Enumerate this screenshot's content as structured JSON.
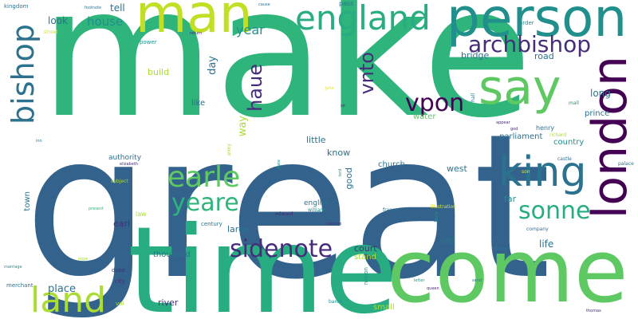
{
  "palette": {
    "dark_purple": "#440154",
    "purple": "#472c7a",
    "indigo": "#3b518b",
    "blue": "#33638d",
    "teal_blue": "#2c728e",
    "teal": "#21908d",
    "green_teal": "#27ad81",
    "green": "#2fb47c",
    "light_green": "#5ec962",
    "lime": "#aadc32",
    "yellow_green": "#c2df23",
    "yellow": "#dde318"
  },
  "words": [
    {
      "text": "great",
      "color": "blue",
      "orientation": "horizontal"
    },
    {
      "text": "make",
      "color": "green",
      "orientation": "horizontal"
    },
    {
      "text": "time",
      "color": "green_teal",
      "orientation": "horizontal"
    },
    {
      "text": "come",
      "color": "light_green",
      "orientation": "horizontal"
    },
    {
      "text": "person",
      "color": "teal",
      "orientation": "horizontal"
    },
    {
      "text": "man",
      "color": "yellow_green",
      "orientation": "horizontal"
    },
    {
      "text": "england",
      "color": "green_teal",
      "orientation": "horizontal"
    },
    {
      "text": "london",
      "color": "dark_purple",
      "orientation": "vertical"
    },
    {
      "text": "say",
      "color": "light_green",
      "orientation": "horizontal"
    },
    {
      "text": "king",
      "color": "teal_blue",
      "orientation": "horizontal"
    },
    {
      "text": "land",
      "color": "lime",
      "orientation": "horizontal"
    },
    {
      "text": "bishop",
      "color": "teal_blue",
      "orientation": "vertical"
    },
    {
      "text": "archbishop",
      "color": "purple",
      "orientation": "horizontal"
    },
    {
      "text": "earle",
      "color": "light_green",
      "orientation": "horizontal"
    },
    {
      "text": "yeare",
      "color": "green",
      "orientation": "horizontal"
    },
    {
      "text": "sonne",
      "color": "green_teal",
      "orientation": "horizontal"
    },
    {
      "text": "vpon",
      "color": "dark_purple",
      "orientation": "horizontal"
    },
    {
      "text": "sidenote",
      "color": "purple",
      "orientation": "horizontal"
    },
    {
      "text": "haue",
      "color": "purple",
      "orientation": "vertical"
    },
    {
      "text": "vnto",
      "color": "purple",
      "orientation": "vertical"
    },
    {
      "text": "year",
      "color": "teal",
      "orientation": "horizontal"
    },
    {
      "text": "house",
      "color": "teal",
      "orientation": "horizontal"
    },
    {
      "text": "look",
      "color": "teal_blue",
      "orientation": "horizontal"
    },
    {
      "text": "tell",
      "color": "teal_blue",
      "orientation": "horizontal"
    },
    {
      "text": "bridge",
      "color": "teal_blue",
      "orientation": "horizontal"
    },
    {
      "text": "road",
      "color": "teal_blue",
      "orientation": "horizontal"
    },
    {
      "text": "build",
      "color": "lime",
      "orientation": "horizontal"
    },
    {
      "text": "long",
      "color": "teal_blue",
      "orientation": "horizontal"
    },
    {
      "text": "prince",
      "color": "teal_blue",
      "orientation": "horizontal"
    },
    {
      "text": "like",
      "color": "teal_blue",
      "orientation": "horizontal"
    },
    {
      "text": "day",
      "color": "teal_blue",
      "orientation": "vertical"
    },
    {
      "text": "way",
      "color": "lime",
      "orientation": "vertical"
    },
    {
      "text": "water",
      "color": "light_green",
      "orientation": "horizontal"
    },
    {
      "text": "henry",
      "color": "teal_blue",
      "orientation": "horizontal"
    },
    {
      "text": "parliament",
      "color": "teal_blue",
      "orientation": "horizontal"
    },
    {
      "text": "country",
      "color": "teal",
      "orientation": "horizontal"
    },
    {
      "text": "little",
      "color": "teal_blue",
      "orientation": "horizontal"
    },
    {
      "text": "know",
      "color": "teal_blue",
      "orientation": "horizontal"
    },
    {
      "text": "authority",
      "color": "teal_blue",
      "orientation": "horizontal"
    },
    {
      "text": "church",
      "color": "teal_blue",
      "orientation": "horizontal"
    },
    {
      "text": "west",
      "color": "teal_blue",
      "orientation": "horizontal"
    },
    {
      "text": "good",
      "color": "teal_blue",
      "orientation": "vertical"
    },
    {
      "text": "english",
      "color": "teal_blue",
      "orientation": "horizontal"
    },
    {
      "text": "town",
      "color": "teal_blue",
      "orientation": "vertical"
    },
    {
      "text": "earl",
      "color": "purple",
      "orientation": "horizontal"
    },
    {
      "text": "large",
      "color": "teal_blue",
      "orientation": "horizontal"
    },
    {
      "text": "old",
      "color": "teal_blue",
      "orientation": "horizontal"
    },
    {
      "text": "court",
      "color": "purple",
      "orientation": "horizontal"
    },
    {
      "text": "stand",
      "color": "lime",
      "orientation": "horizontal"
    },
    {
      "text": "life",
      "color": "teal_blue",
      "orientation": "horizontal"
    },
    {
      "text": "far",
      "color": "teal",
      "orientation": "horizontal"
    },
    {
      "text": "place",
      "color": "teal_blue",
      "orientation": "horizontal"
    },
    {
      "text": "thousand",
      "color": "teal_blue",
      "orientation": "horizontal"
    },
    {
      "text": "river",
      "color": "purple",
      "orientation": "horizontal"
    },
    {
      "text": "small",
      "color": "lime",
      "orientation": "horizontal"
    },
    {
      "text": "kingdom",
      "color": "teal_blue",
      "orientation": "horizontal"
    },
    {
      "text": "footnote",
      "color": "teal_blue",
      "orientation": "horizontal"
    },
    {
      "text": "street",
      "color": "yellow",
      "orientation": "horizontal"
    },
    {
      "text": "cause",
      "color": "teal_blue",
      "orientation": "horizontal"
    },
    {
      "text": "pass",
      "color": "teal_blue",
      "orientation": "horizontal"
    },
    {
      "text": "order",
      "color": "teal",
      "orientation": "horizontal"
    },
    {
      "text": "power",
      "color": "teal",
      "orientation": "horizontal"
    },
    {
      "text": "return",
      "color": "purple",
      "orientation": "horizontal"
    },
    {
      "text": "appear",
      "color": "purple",
      "orientation": "horizontal"
    },
    {
      "text": "god",
      "color": "purple",
      "orientation": "horizontal"
    },
    {
      "text": "richard",
      "color": "lime",
      "orientation": "horizontal"
    },
    {
      "text": "castle",
      "color": "teal_blue",
      "orientation": "horizontal"
    },
    {
      "text": "palace",
      "color": "teal_blue",
      "orientation": "horizontal"
    },
    {
      "text": "hall",
      "color": "teal_blue",
      "orientation": "vertical"
    },
    {
      "text": "mall",
      "color": "teal",
      "orientation": "horizontal"
    },
    {
      "text": "inn",
      "color": "teal_blue",
      "orientation": "horizontal"
    },
    {
      "text": "elizabeth",
      "color": "purple",
      "orientation": "horizontal"
    },
    {
      "text": "subject",
      "color": "lime",
      "orientation": "horizontal"
    },
    {
      "text": "present",
      "color": "green",
      "orientation": "horizontal"
    },
    {
      "text": "army",
      "color": "lime",
      "orientation": "vertical"
    },
    {
      "text": "state",
      "color": "teal",
      "orientation": "vertical"
    },
    {
      "text": "lord",
      "color": "teal",
      "orientation": "vertical"
    },
    {
      "text": "john",
      "color": "yellow",
      "orientation": "horizontal"
    },
    {
      "text": "sir",
      "color": "purple",
      "orientation": "horizontal"
    },
    {
      "text": "william",
      "color": "teal",
      "orientation": "horizontal"
    },
    {
      "text": "edward",
      "color": "purple",
      "orientation": "horizontal"
    },
    {
      "text": "illustration",
      "color": "yellow",
      "orientation": "horizontal"
    },
    {
      "text": "bury",
      "color": "teal",
      "orientation": "vertical"
    },
    {
      "text": "son",
      "color": "yellow",
      "orientation": "horizontal"
    },
    {
      "text": "france",
      "color": "teal_blue",
      "orientation": "horizontal"
    },
    {
      "text": "company",
      "color": "teal_blue",
      "orientation": "horizontal"
    },
    {
      "text": "law",
      "color": "lime",
      "orientation": "horizontal"
    },
    {
      "text": "century",
      "color": "teal_blue",
      "orientation": "horizontal"
    },
    {
      "text": "receive",
      "color": "purple",
      "orientation": "horizontal"
    },
    {
      "text": "tower",
      "color": "teal_blue",
      "orientation": "horizontal"
    },
    {
      "text": "pope",
      "color": "lime",
      "orientation": "horizontal"
    },
    {
      "text": "marriage",
      "color": "teal",
      "orientation": "horizontal"
    },
    {
      "text": "merchant",
      "color": "teal_blue",
      "orientation": "horizontal"
    },
    {
      "text": "duke",
      "color": "purple",
      "orientation": "horizontal"
    },
    {
      "text": "city",
      "color": "purple",
      "orientation": "horizontal"
    },
    {
      "text": "vol",
      "color": "lime",
      "orientation": "horizontal"
    },
    {
      "text": "nation",
      "color": "teal",
      "orientation": "vertical"
    },
    {
      "text": "letter",
      "color": "teal",
      "orientation": "horizontal"
    },
    {
      "text": "queen",
      "color": "purple",
      "orientation": "horizontal"
    },
    {
      "text": "send",
      "color": "teal_blue",
      "orientation": "horizontal"
    },
    {
      "text": "baron",
      "color": "teal",
      "orientation": "horizontal"
    },
    {
      "text": "thomas",
      "color": "purple",
      "orientation": "horizontal"
    }
  ]
}
